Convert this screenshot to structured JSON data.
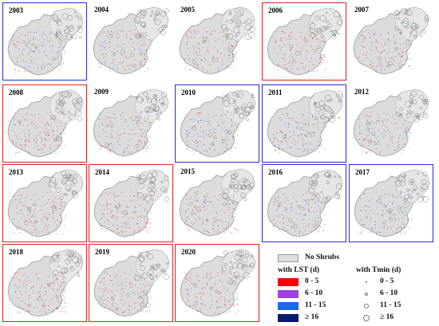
{
  "panels": [
    {
      "year": "2003",
      "border": "blue"
    },
    {
      "year": "2004",
      "border": "none"
    },
    {
      "year": "2005",
      "border": "none"
    },
    {
      "year": "2006",
      "border": "red"
    },
    {
      "year": "2007",
      "border": "none"
    },
    {
      "year": "2008",
      "border": "red"
    },
    {
      "year": "2009",
      "border": "none"
    },
    {
      "year": "2010",
      "border": "blue"
    },
    {
      "year": "2011",
      "border": "blue"
    },
    {
      "year": "2012",
      "border": "none"
    },
    {
      "year": "2013",
      "border": "red"
    },
    {
      "year": "2014",
      "border": "red"
    },
    {
      "year": "2015",
      "border": "none"
    },
    {
      "year": "2016",
      "border": "blue"
    },
    {
      "year": "2017",
      "border": "blue"
    },
    {
      "year": "2018",
      "border": "red"
    },
    {
      "year": "2019",
      "border": "red"
    },
    {
      "year": "2020",
      "border": "red"
    }
  ],
  "legend": {
    "no_shrubs": "No Shrubs",
    "lst_title": "with LST (d)",
    "tmin_title": "with Tmin (d)",
    "lst_classes": [
      {
        "label": "0 - 5",
        "color": "#ff0000"
      },
      {
        "label": "6 - 10",
        "color": "#a040e0"
      },
      {
        "label": "11 - 15",
        "color": "#1a6ae8"
      },
      {
        "label": "≥ 16",
        "color": "#0a1a6a"
      }
    ],
    "tmin_classes": [
      {
        "label": "0 - 5"
      },
      {
        "label": "6 - 10"
      },
      {
        "label": "11 - 15"
      },
      {
        "label": "≥ 16"
      }
    ]
  },
  "colors": {
    "map_fill": "#dcdcdc",
    "map_outline": "#9a9a9a",
    "red_frame": "#e02020",
    "blue_frame": "#2a2ad6"
  }
}
